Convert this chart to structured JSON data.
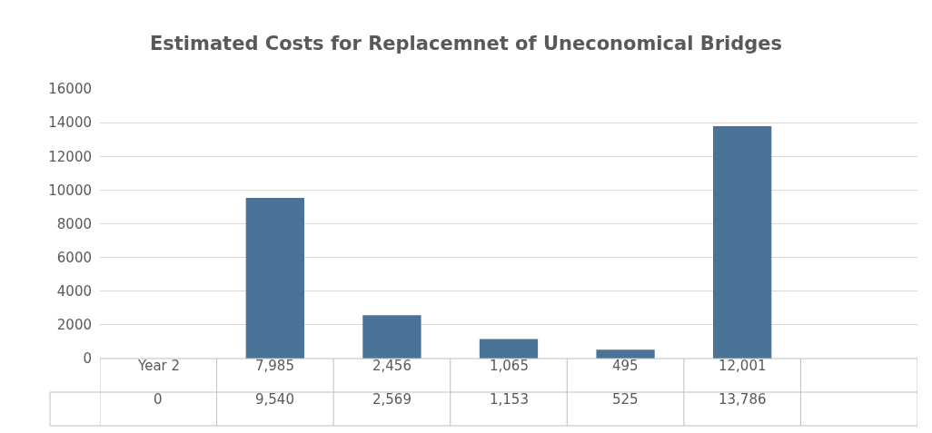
{
  "chart_data": {
    "type": "bar",
    "title": "Estimated Costs for Replacemnet of Uneconomical Bridges",
    "categories": [
      "Year 2",
      "7,985",
      "2,456",
      "1,065",
      "495",
      "12,001",
      null
    ],
    "series": [
      {
        "color": "#4a7398",
        "values": [
          0,
          9540,
          2569,
          1153,
          525,
          13786,
          null
        ],
        "value_labels": [
          "0",
          "9,540",
          "2,569",
          "1,153",
          "525",
          "13,786",
          null
        ]
      }
    ],
    "ylim": [
      0,
      16000
    ],
    "yticks": [
      0,
      2000,
      4000,
      6000,
      8000,
      10000,
      12000,
      14000,
      16000
    ],
    "grid": "y",
    "legend": false
  }
}
